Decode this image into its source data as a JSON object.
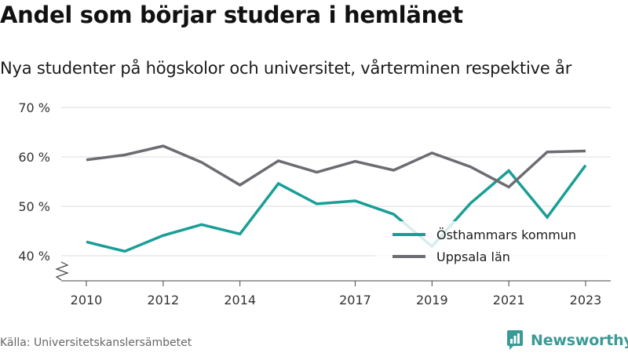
{
  "title": "Andel som börjar studera i hemlänet",
  "subtitle": "Nya studenter på högskolor och universitet, vårterminen respektive år",
  "source": "Källa: Universitetskanslersämbetet",
  "brand": {
    "name": "Newsworthy",
    "icon": "newsworthy-logo-icon",
    "color": "#3a9a95"
  },
  "chart_data": {
    "type": "line",
    "title": "Andel som börjar studera i hemlänet",
    "x": [
      2010,
      2011,
      2012,
      2013,
      2014,
      2015,
      2016,
      2017,
      2018,
      2019,
      2020,
      2021,
      2022,
      2023
    ],
    "x_tick_labels": [
      "2010",
      "2012",
      "2014",
      "2017",
      "2019",
      "2021",
      "2023"
    ],
    "y_ticks": [
      40,
      50,
      60,
      70
    ],
    "y_tick_labels": [
      "40 %",
      "50 %",
      "60 %",
      "70 %"
    ],
    "ylim": [
      40,
      70
    ],
    "y_axis_break": true,
    "grid": "horizontal",
    "legend_position": "bottom-right",
    "series": [
      {
        "name": "Östhammars kommun",
        "color": "#1a9e96",
        "values": [
          42.8,
          40.9,
          44.1,
          46.3,
          44.4,
          54.6,
          50.5,
          51.1,
          48.4,
          41.9,
          50.6,
          57.2,
          47.8,
          58.3
        ]
      },
      {
        "name": "Uppsala län",
        "color": "#6d6c72",
        "values": [
          59.4,
          60.4,
          62.2,
          58.9,
          54.3,
          59.2,
          56.9,
          59.1,
          57.3,
          60.8,
          58.0,
          53.9,
          61.0,
          61.2
        ]
      }
    ]
  }
}
